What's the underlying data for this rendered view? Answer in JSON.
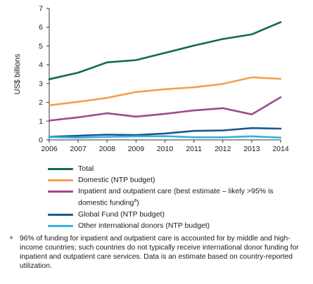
{
  "chart_data": {
    "type": "line",
    "ylabel": "US$ billions",
    "xlabel": "",
    "x": [
      2006,
      2007,
      2008,
      2009,
      2010,
      2011,
      2012,
      2013,
      2014
    ],
    "ylim": [
      0,
      7
    ],
    "yticks": [
      0,
      1,
      2,
      3,
      4,
      5,
      6,
      7
    ],
    "grid": false,
    "legend_position": "bottom",
    "series": [
      {
        "name": "Total",
        "color": "#0e6b4f",
        "values": [
          3.23,
          3.58,
          4.13,
          4.25,
          4.63,
          5.02,
          5.37,
          5.62,
          6.27
        ]
      },
      {
        "name": "Domestic (NTP budget)",
        "color": "#f4a04e",
        "values": [
          1.84,
          2.03,
          2.24,
          2.55,
          2.7,
          2.8,
          2.98,
          3.33,
          3.25
        ]
      },
      {
        "name": "Inpatient and outpatient care (best estimate – likely >95% is domestic funding",
        "name_superscript": "a",
        "name_suffix": ")",
        "color": "#a04a8c",
        "values": [
          1.03,
          1.2,
          1.42,
          1.24,
          1.39,
          1.57,
          1.69,
          1.36,
          2.27
        ]
      },
      {
        "name": "Global Fund (NTP budget)",
        "color": "#1c5a8e",
        "values": [
          0.16,
          0.22,
          0.28,
          0.26,
          0.34,
          0.48,
          0.5,
          0.63,
          0.6
        ]
      },
      {
        "name": "Other international donors (NTP budget)",
        "color": "#3ab0e2",
        "values": [
          0.15,
          0.12,
          0.16,
          0.19,
          0.2,
          0.14,
          0.14,
          0.19,
          0.12
        ]
      }
    ]
  },
  "footnote": {
    "marker": "a",
    "text": "96% of funding for inpatient and outpatient care is accounted for by middle and high-income countries; such countries do not typically receive international donor funding for inpatient and outpatient care services. Data is an estimate based on country-reported utilization."
  }
}
